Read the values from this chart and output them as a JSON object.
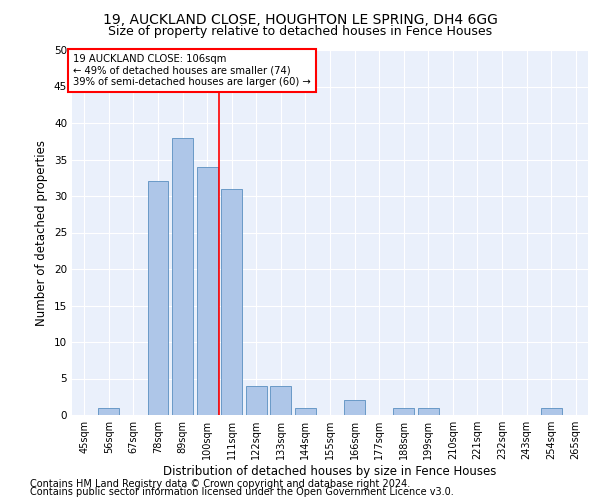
{
  "title1": "19, AUCKLAND CLOSE, HOUGHTON LE SPRING, DH4 6GG",
  "title2": "Size of property relative to detached houses in Fence Houses",
  "xlabel": "Distribution of detached houses by size in Fence Houses",
  "ylabel": "Number of detached properties",
  "footnote1": "Contains HM Land Registry data © Crown copyright and database right 2024.",
  "footnote2": "Contains public sector information licensed under the Open Government Licence v3.0.",
  "annotation_line1": "19 AUCKLAND CLOSE: 106sqm",
  "annotation_line2": "← 49% of detached houses are smaller (74)",
  "annotation_line3": "39% of semi-detached houses are larger (60) →",
  "bar_labels": [
    "45sqm",
    "56sqm",
    "67sqm",
    "78sqm",
    "89sqm",
    "100sqm",
    "111sqm",
    "122sqm",
    "133sqm",
    "144sqm",
    "155sqm",
    "166sqm",
    "177sqm",
    "188sqm",
    "199sqm",
    "210sqm",
    "221sqm",
    "232sqm",
    "243sqm",
    "254sqm",
    "265sqm"
  ],
  "bar_values": [
    0,
    1,
    0,
    32,
    38,
    34,
    31,
    4,
    4,
    1,
    0,
    2,
    0,
    1,
    1,
    0,
    0,
    0,
    0,
    1,
    0
  ],
  "bar_color": "#aec6e8",
  "bar_edge_color": "#5a8fc0",
  "vline_x": 5.5,
  "vline_color": "red",
  "ylim": [
    0,
    50
  ],
  "yticks": [
    0,
    5,
    10,
    15,
    20,
    25,
    30,
    35,
    40,
    45,
    50
  ],
  "bg_color": "#eaf0fb",
  "grid_color": "#ffffff",
  "annotation_box_color": "red",
  "title1_fontsize": 10,
  "title2_fontsize": 9,
  "xlabel_fontsize": 8.5,
  "ylabel_fontsize": 8.5,
  "tick_fontsize": 7,
  "footnote_fontsize": 7
}
